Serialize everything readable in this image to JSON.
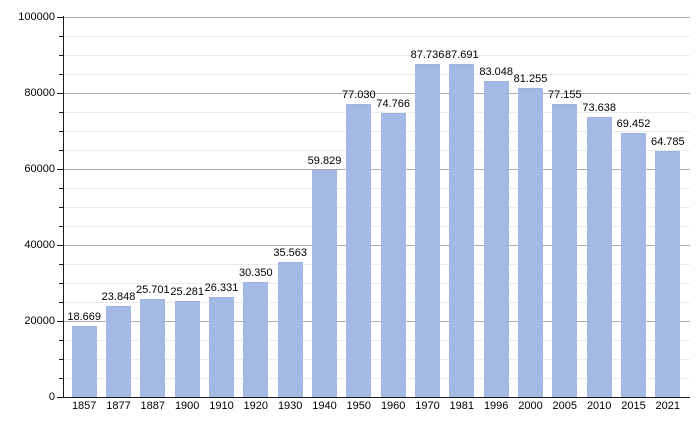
{
  "chart_data": {
    "type": "bar",
    "title": "",
    "xlabel": "",
    "ylabel": "",
    "categories": [
      "1857",
      "1877",
      "1887",
      "1900",
      "1910",
      "1920",
      "1930",
      "1940",
      "1950",
      "1960",
      "1970",
      "1981",
      "1996",
      "2000",
      "2005",
      "2010",
      "2015",
      "2021"
    ],
    "values": [
      18669,
      23848,
      25701,
      25281,
      26331,
      30350,
      35563,
      59829,
      77030,
      74766,
      87736,
      87691,
      83048,
      81255,
      77155,
      73638,
      69452,
      64785
    ],
    "bar_labels": [
      "18.669",
      "23.848",
      "25.701",
      "25.281",
      "26.331",
      "30.350",
      "35.563",
      "59.829",
      "77.030",
      "74.766",
      "87.736",
      "87.691",
      "83.048",
      "81.255",
      "77.155",
      "73.638",
      "69.452",
      "64.785"
    ],
    "ylim": [
      0,
      100000
    ],
    "y_major_step": 20000,
    "y_minor_step": 5000,
    "y_tick_labels": [
      "0",
      "20000",
      "40000",
      "60000",
      "80000",
      "100000"
    ],
    "legend": "none",
    "grid": "on",
    "colors": {
      "bar_fill": "#a4b9e4",
      "bar_edge": "#9db3e0",
      "grid_major": "#ababab",
      "grid_minor": "#ebebeb",
      "axis": "#1a1a1a",
      "text": "#000000",
      "background": "#ffffff"
    }
  }
}
